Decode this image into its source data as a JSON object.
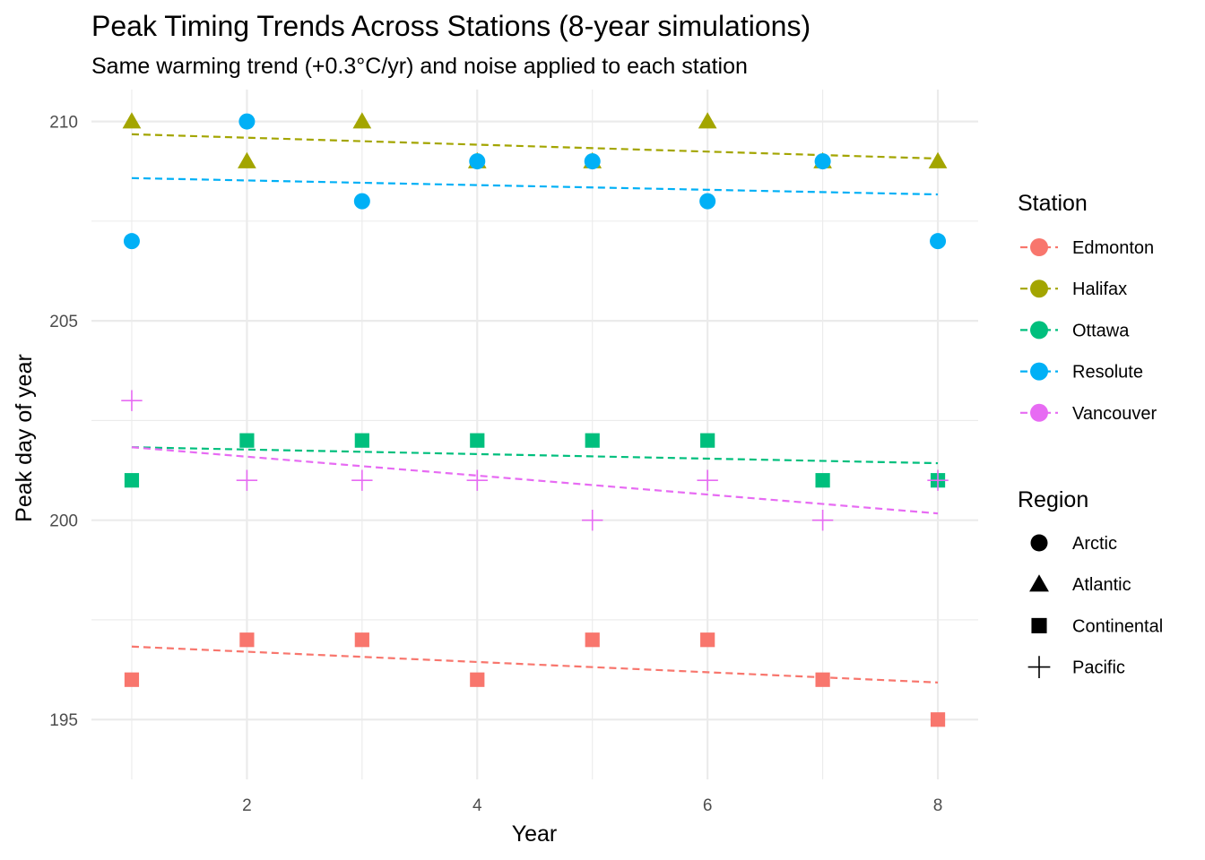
{
  "chart_data": {
    "type": "scatter",
    "title": "Peak Timing Trends Across Stations (8-year simulations)",
    "subtitle": "Same warming trend (+0.3°C/yr) and noise applied to each station",
    "xlabel": "Year",
    "ylabel": "Peak day of year",
    "xlim": [
      0.65,
      8.35
    ],
    "ylim": [
      193.5,
      210.8
    ],
    "x_ticks": [
      2,
      4,
      6,
      8
    ],
    "x_tick_labels": [
      "2",
      "4",
      "6",
      "8"
    ],
    "y_ticks": [
      195,
      200,
      205,
      210
    ],
    "y_tick_labels": [
      "195",
      "200",
      "205",
      "210"
    ],
    "grid": true,
    "series": [
      {
        "name": "Edmonton",
        "region": "Continental",
        "color": "#F8766D",
        "x": [
          1,
          2,
          3,
          4,
          5,
          6,
          7,
          8
        ],
        "values": [
          196,
          197,
          197,
          196,
          197,
          197,
          196,
          195
        ],
        "trend": [
          196.83,
          195.93
        ]
      },
      {
        "name": "Halifax",
        "region": "Atlantic",
        "color": "#A3A500",
        "x": [
          1,
          2,
          3,
          4,
          5,
          6,
          7,
          8
        ],
        "values": [
          210,
          209,
          210,
          209,
          209,
          210,
          209,
          209
        ],
        "trend": [
          209.68,
          209.07
        ]
      },
      {
        "name": "Ottawa",
        "region": "Continental",
        "color": "#00BF7D",
        "x": [
          1,
          2,
          3,
          4,
          5,
          6,
          7,
          8
        ],
        "values": [
          201,
          202,
          202,
          202,
          202,
          202,
          201,
          201
        ],
        "trend": [
          201.83,
          201.43
        ]
      },
      {
        "name": "Resolute",
        "region": "Arctic",
        "color": "#00B0F6",
        "x": [
          1,
          2,
          3,
          4,
          5,
          6,
          7,
          8
        ],
        "values": [
          207,
          210,
          208,
          209,
          209,
          208,
          209,
          207
        ],
        "trend": [
          208.58,
          208.17
        ]
      },
      {
        "name": "Vancouver",
        "region": "Pacific",
        "color": "#E76BF3",
        "x": [
          1,
          2,
          3,
          4,
          5,
          6,
          7,
          8
        ],
        "values": [
          203,
          201,
          201,
          201,
          200,
          201,
          200,
          201
        ],
        "trend": [
          201.83,
          200.17
        ]
      }
    ],
    "legend": {
      "station_title": "Station",
      "region_title": "Region",
      "regions": [
        {
          "name": "Arctic",
          "shape": "circle"
        },
        {
          "name": "Atlantic",
          "shape": "triangle"
        },
        {
          "name": "Continental",
          "shape": "square"
        },
        {
          "name": "Pacific",
          "shape": "plus"
        }
      ]
    }
  }
}
